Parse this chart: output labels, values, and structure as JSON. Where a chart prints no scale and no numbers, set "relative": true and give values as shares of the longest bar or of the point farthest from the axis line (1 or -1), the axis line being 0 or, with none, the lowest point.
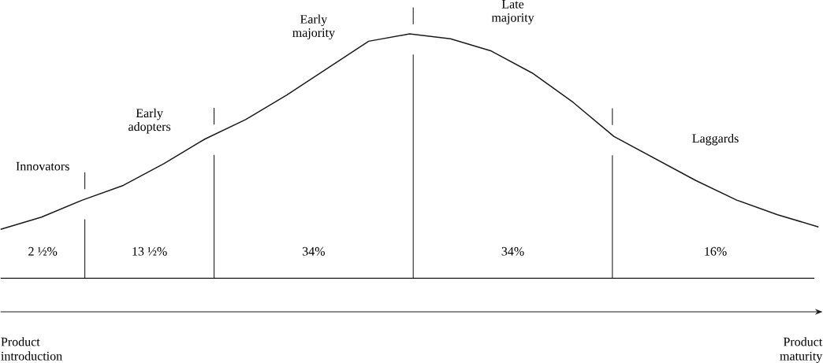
{
  "chart_data": {
    "type": "line",
    "relative": true,
    "color": "#1a1a1a",
    "categories": [
      null,
      null,
      null,
      null,
      null,
      null,
      null,
      null,
      null,
      null,
      null,
      null,
      null,
      null,
      null,
      null,
      null,
      null,
      null,
      null,
      null
    ],
    "values": [
      0.2,
      0.25,
      0.32,
      0.38,
      0.47,
      0.57,
      0.65,
      0.75,
      0.86,
      0.97,
      1.0,
      0.98,
      0.93,
      0.84,
      0.72,
      0.58,
      0.49,
      0.4,
      0.32,
      0.26,
      0.21
    ],
    "annotations": [
      "Innovators",
      "Early adopters",
      "Early majority",
      "Late majority",
      "Laggards",
      "2 ½%",
      "13 ½%",
      "34%",
      "34%",
      "16%",
      "Product introduction",
      "Product maturity"
    ]
  }
}
